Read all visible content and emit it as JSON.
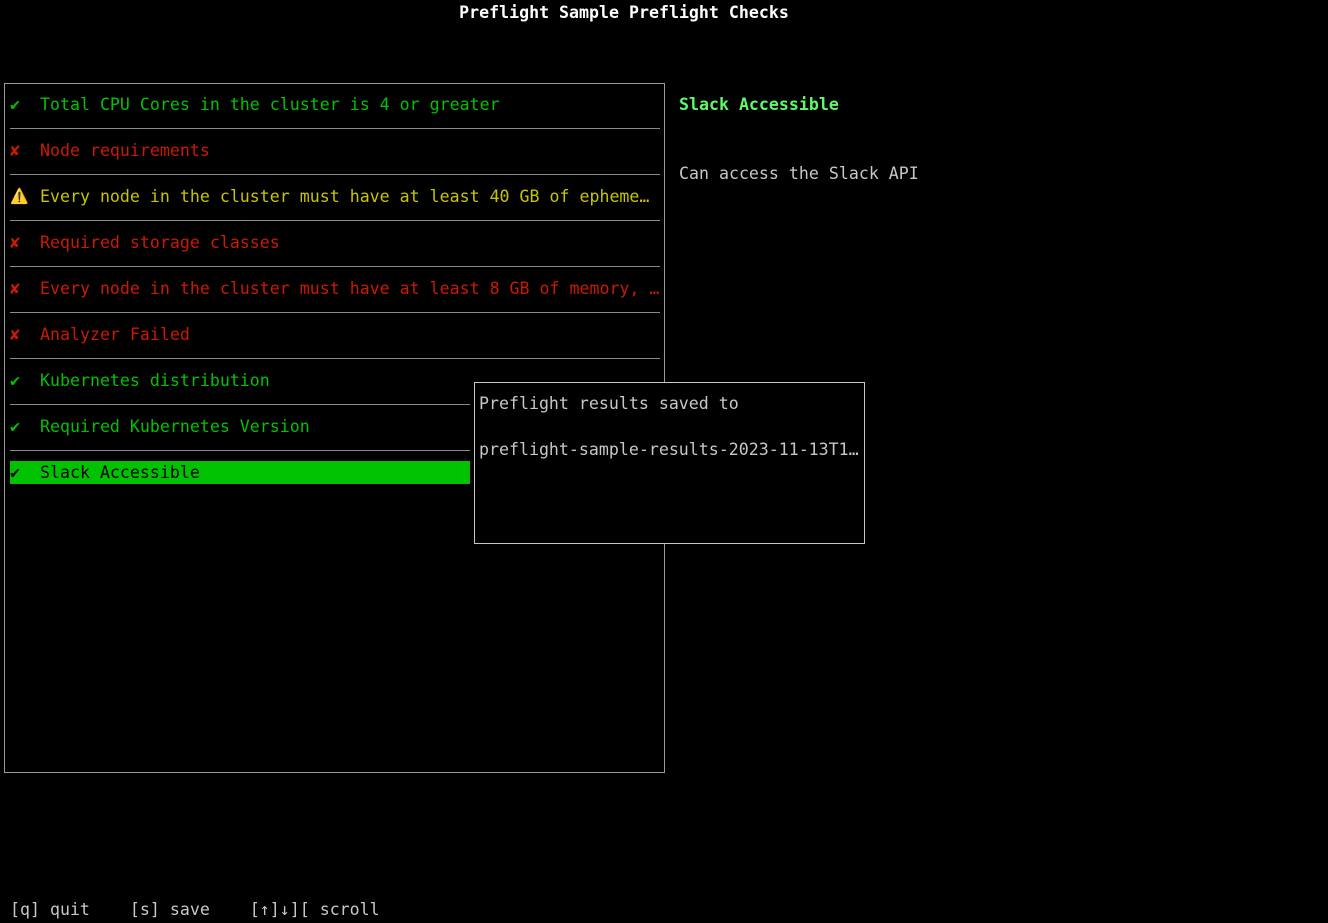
{
  "title": "Preflight Sample Preflight Checks",
  "colors": {
    "pass": "#00c200",
    "fail": "#c91b00",
    "warn": "#c7c400",
    "selected_bg": "#00c200",
    "detail_title": "#5ff967"
  },
  "checks": [
    {
      "status": "pass",
      "icon": "check-icon",
      "glyph": "✔",
      "label": "Total CPU Cores in the cluster is 4 or greater"
    },
    {
      "status": "fail",
      "icon": "cross-icon",
      "glyph": "✘",
      "label": "Node requirements"
    },
    {
      "status": "warn",
      "icon": "warning-icon",
      "glyph": "⚠️",
      "label": "Every node in the cluster must have at least 40 GB of epheme…"
    },
    {
      "status": "fail",
      "icon": "cross-icon",
      "glyph": "✘",
      "label": "Required storage classes"
    },
    {
      "status": "fail",
      "icon": "cross-icon",
      "glyph": "✘",
      "label": "Every node in the cluster must have at least 8 GB of memory, …"
    },
    {
      "status": "fail",
      "icon": "cross-icon",
      "glyph": "✘",
      "label": "Analyzer Failed"
    },
    {
      "status": "pass",
      "icon": "check-icon",
      "glyph": "✔",
      "label": "Kubernetes distribution"
    },
    {
      "status": "pass",
      "icon": "check-icon",
      "glyph": "✔",
      "label": "Required Kubernetes Version"
    },
    {
      "status": "pass",
      "icon": "check-icon",
      "glyph": "✔",
      "label": "Slack Accessible",
      "selected": true
    }
  ],
  "detail": {
    "title": "Slack Accessible",
    "description": "Can access the Slack API"
  },
  "popup": {
    "line1": "Preflight results saved to",
    "line2": "preflight-sample-results-2023-11-13T1…"
  },
  "footer": "[q] quit    [s] save    [↑]↓][ scroll"
}
